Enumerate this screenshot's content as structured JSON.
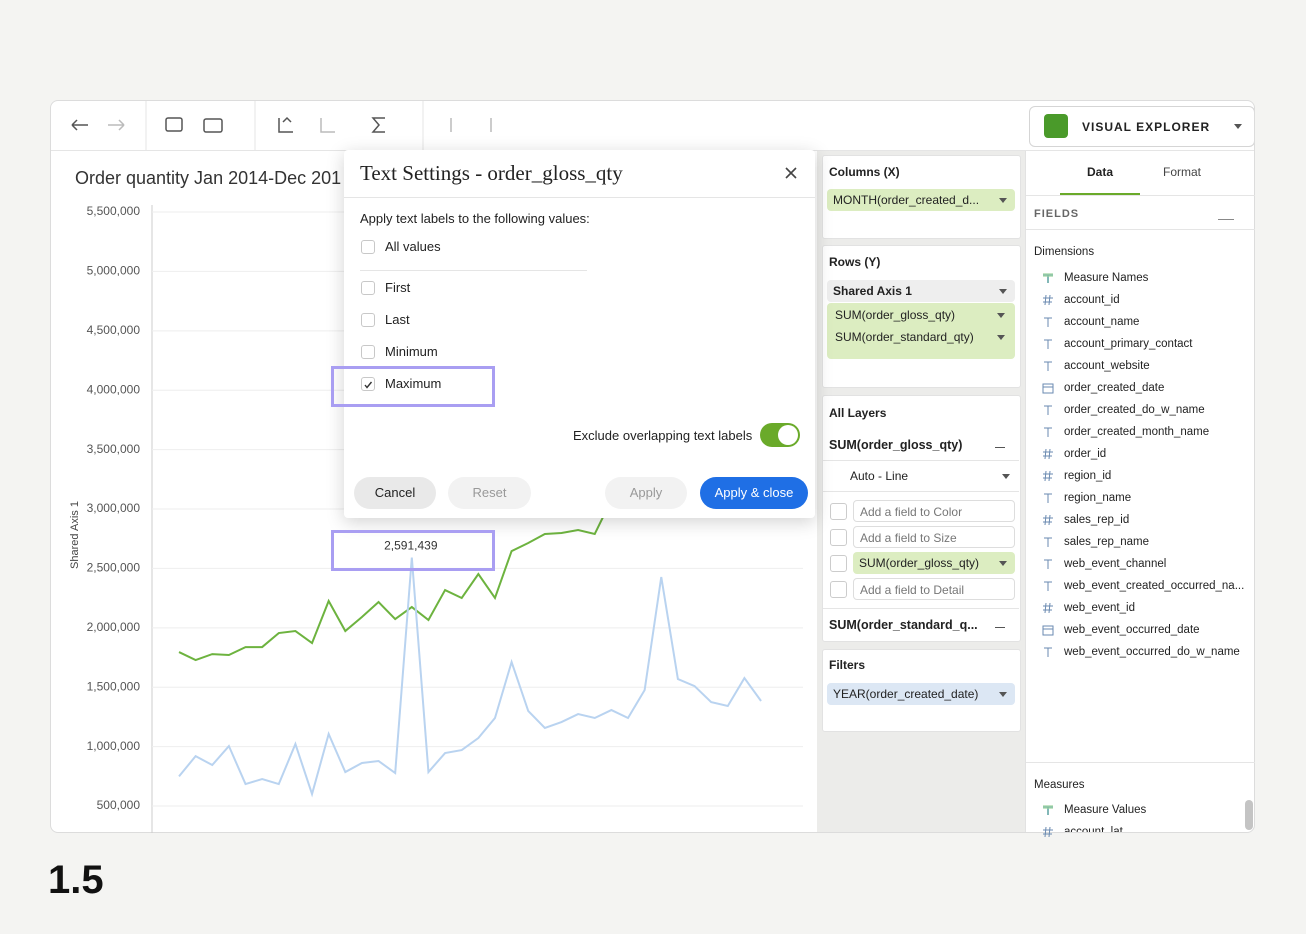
{
  "toolbar": {
    "product": "VISUAL EXPLORER"
  },
  "chart_data": {
    "type": "line",
    "title": "Order quantity Jan 2014-Dec 201",
    "y_label": "Shared Axis 1",
    "ylim": [
      273000,
      5559000
    ],
    "yticks": [
      {
        "value": 500000,
        "label": "500,000"
      },
      {
        "value": 1000000,
        "label": "1,000,000"
      },
      {
        "value": 1500000,
        "label": "1,500,000"
      },
      {
        "value": 2000000,
        "label": "2,000,000"
      },
      {
        "value": 2500000,
        "label": "2,500,000"
      },
      {
        "value": 3000000,
        "label": "3,000,000"
      },
      {
        "value": 3500000,
        "label": "3,500,000"
      },
      {
        "value": 4000000,
        "label": "4,000,000"
      },
      {
        "value": 4500000,
        "label": "4,500,000"
      },
      {
        "value": 5000000,
        "label": "5,000,000"
      },
      {
        "value": 5500000,
        "label": "5,500,000"
      }
    ],
    "grid": true,
    "series": [
      {
        "color": "#6db33f",
        "values": [
          1796000,
          1729000,
          1779000,
          1771000,
          1838000,
          1838000,
          1956000,
          1973000,
          1872000,
          2226000,
          1973000,
          2091000,
          2217000,
          2074000,
          2175000,
          2066000,
          2318000,
          2251000,
          2453000,
          2251000,
          2646000,
          2714000,
          2790000,
          2798000,
          2823000,
          2790000,
          3076000,
          null,
          null,
          null,
          null,
          null,
          null,
          null,
          null,
          null
        ]
      },
      {
        "color": "#b9d3f0",
        "values": [
          750000,
          920000,
          845000,
          1005000,
          685000,
          727000,
          685000,
          1022000,
          601000,
          1106000,
          786000,
          862000,
          879000,
          778000,
          2591439,
          786000,
          946000,
          971000,
          1072000,
          1241000,
          1712000,
          1300000,
          1157000,
          1207000,
          1274000,
          1241000,
          1308000,
          1241000,
          1476000,
          2428000,
          1569000,
          1510000,
          1375000,
          1342000,
          1577000,
          1384000
        ],
        "value_labels": [
          null,
          null,
          null,
          null,
          null,
          null,
          null,
          null,
          null,
          null,
          null,
          null,
          null,
          null,
          "2,591,439",
          null,
          null,
          null,
          null,
          null,
          null,
          null,
          null,
          null,
          null,
          null,
          null,
          null,
          null,
          null,
          null,
          null,
          null,
          null,
          null,
          null
        ]
      }
    ]
  },
  "dialog": {
    "title": "Text Settings - order_gloss_qty",
    "prompt": "Apply text labels to the following values:",
    "options": [
      {
        "label": "All values",
        "checked": false
      },
      {
        "label": "First",
        "checked": false
      },
      {
        "label": "Last",
        "checked": false
      },
      {
        "label": "Minimum",
        "checked": false
      },
      {
        "label": "Maximum",
        "checked": true
      }
    ],
    "exclude_label": "Exclude overlapping text labels",
    "exclude_on": true,
    "buttons": [
      "Cancel",
      "Reset",
      "Apply",
      "Apply & close"
    ]
  },
  "shelves": {
    "columns_title": "Columns (X)",
    "columns": [
      "MONTH(order_created_d..."
    ],
    "rows_title": "Rows (Y)",
    "rows_group": "Shared Axis 1",
    "rows": [
      "SUM(order_gloss_qty)",
      "SUM(order_standard_qty)"
    ],
    "layers_title": "All Layers",
    "layers": [
      "SUM(order_gloss_qty)",
      "SUM(order_standard_q..."
    ],
    "mark_type": "Auto - Line",
    "encodings": [
      "Add a field to Color",
      "Add a field to Size",
      "SUM(order_gloss_qty)",
      "Add a field to Detail"
    ],
    "filters_title": "Filters",
    "filters": [
      "YEAR(order_created_date)"
    ]
  },
  "panel": {
    "tabs": [
      "Data",
      "Format"
    ],
    "fields_title": "FIELDS",
    "dimensions_title": "Dimensions",
    "dimensions": [
      {
        "name": "Measure Names",
        "kind": "names"
      },
      {
        "name": "account_id",
        "kind": "number"
      },
      {
        "name": "account_name",
        "kind": "text"
      },
      {
        "name": "account_primary_contact",
        "kind": "text"
      },
      {
        "name": "account_website",
        "kind": "text"
      },
      {
        "name": "order_created_date",
        "kind": "date"
      },
      {
        "name": "order_created_do_w_name",
        "kind": "text"
      },
      {
        "name": "order_created_month_name",
        "kind": "text"
      },
      {
        "name": "order_id",
        "kind": "number"
      },
      {
        "name": "region_id",
        "kind": "number"
      },
      {
        "name": "region_name",
        "kind": "text"
      },
      {
        "name": "sales_rep_id",
        "kind": "number"
      },
      {
        "name": "sales_rep_name",
        "kind": "text"
      },
      {
        "name": "web_event_channel",
        "kind": "text"
      },
      {
        "name": "web_event_created_occurred_na...",
        "kind": "text"
      },
      {
        "name": "web_event_id",
        "kind": "number"
      },
      {
        "name": "web_event_occurred_date",
        "kind": "date"
      },
      {
        "name": "web_event_occurred_do_w_name",
        "kind": "text"
      }
    ],
    "measures_title": "Measures",
    "measures": [
      {
        "name": "Measure Values",
        "kind": "names"
      },
      {
        "name": "account_lat",
        "kind": "number"
      }
    ]
  },
  "step": "1.5"
}
